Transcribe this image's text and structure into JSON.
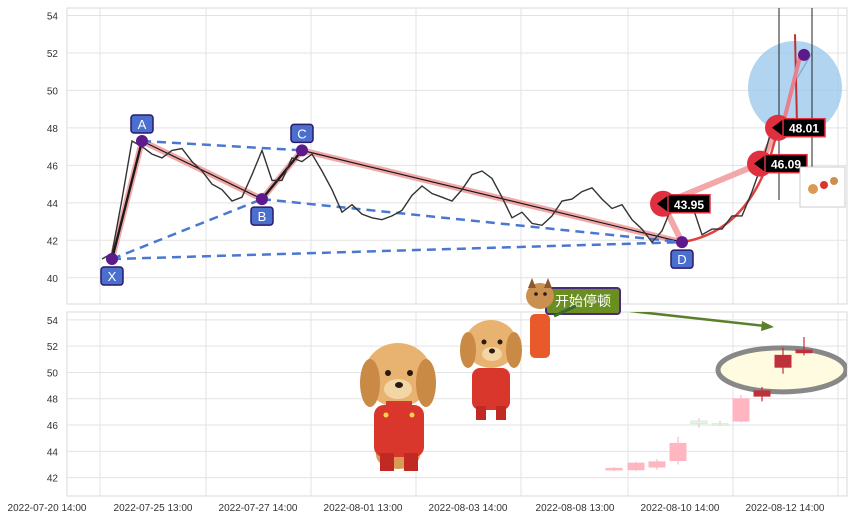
{
  "chart_data": {
    "type": "candlestick-with-pattern-overlay",
    "x_tick_labels": [
      "2022-07-20 14:00",
      "2022-07-25 13:00",
      "2022-07-27 14:00",
      "2022-08-01 13:00",
      "2022-08-03 14:00",
      "2022-08-08 13:00",
      "2022-08-10 14:00",
      "2022-08-12 14:00"
    ],
    "upper_panel": {
      "ylim": [
        38.6,
        54.4
      ],
      "y_ticks": [
        40,
        42,
        44,
        46,
        48,
        50,
        52,
        54
      ],
      "price_line": [
        41.0,
        41.3,
        44.2,
        47.3,
        47.0,
        46.6,
        46.4,
        46.8,
        46.9,
        46.2,
        45.7,
        45.0,
        44.7,
        44.1,
        44.3,
        45.5,
        46.8,
        45.2,
        45.2,
        46.4,
        46.2,
        46.6,
        45.7,
        44.7,
        43.5,
        43.9,
        43.4,
        43.2,
        43.1,
        43.3,
        43.6,
        44.4,
        44.9,
        44.5,
        44.3,
        44.1,
        44.7,
        45.5,
        45.7,
        45.3,
        44.3,
        43.2,
        43.5,
        42.9,
        42.8,
        43.3,
        44.1,
        44.2,
        44.6,
        44.8,
        44.2,
        43.7,
        43.9,
        43.1,
        42.6,
        41.9,
        42.5,
        43.8,
        44.0,
        43.9,
        42.3,
        42.6,
        42.6,
        43.3,
        43.3,
        44.6,
        46.1,
        48.0,
        48.2,
        50.2,
        51.1,
        52.0
      ],
      "pattern_points": [
        {
          "label": "X",
          "index": 1,
          "value": 41.0
        },
        {
          "label": "A",
          "index": 4,
          "value": 47.3
        },
        {
          "label": "B",
          "index": 16,
          "value": 44.2
        },
        {
          "label": "C",
          "index": 20,
          "value": 46.8
        },
        {
          "label": "D",
          "index": 58,
          "value": 41.9
        }
      ],
      "price_labels": [
        "43.95",
        "46.09",
        "48.01"
      ],
      "price_label_values": [
        43.95,
        46.09,
        48.01
      ]
    },
    "lower_panel": {
      "ylim": [
        40.6,
        54.6
      ],
      "y_ticks": [
        42,
        44,
        46,
        48,
        50,
        52,
        54
      ],
      "annotation": "开始停顿",
      "candles": [
        {
          "o": 42.6,
          "h": 42.8,
          "l": 42.5,
          "c": 42.7
        },
        {
          "o": 42.6,
          "h": 43.2,
          "l": 42.5,
          "c": 43.1
        },
        {
          "o": 42.8,
          "h": 43.4,
          "l": 42.6,
          "c": 43.2
        },
        {
          "o": 43.3,
          "h": 45.1,
          "l": 43.0,
          "c": 44.6
        },
        {
          "o": 46.1,
          "h": 46.5,
          "l": 45.8,
          "c": 46.3
        },
        {
          "o": 46.0,
          "h": 46.3,
          "l": 45.9,
          "c": 46.1
        },
        {
          "o": 46.3,
          "h": 48.3,
          "l": 46.2,
          "c": 48.0
        },
        {
          "o": 48.6,
          "h": 48.9,
          "l": 47.8,
          "c": 48.2
        },
        {
          "o": 51.3,
          "h": 51.9,
          "l": 49.9,
          "c": 50.4
        },
        {
          "o": 51.5,
          "h": 52.7,
          "l": 51.3,
          "c": 51.7
        }
      ]
    }
  },
  "colors": {
    "price_line": "#333333",
    "pattern_leg": "#f2a7a8",
    "pattern_dash": "#4a78d0",
    "point_marker": "#5c1a8c",
    "label_box": "#4a6fcf",
    "candle_light": "#ffb6c1",
    "candle_dark": "#c0303a",
    "banner_bg": "#6b8e23"
  }
}
